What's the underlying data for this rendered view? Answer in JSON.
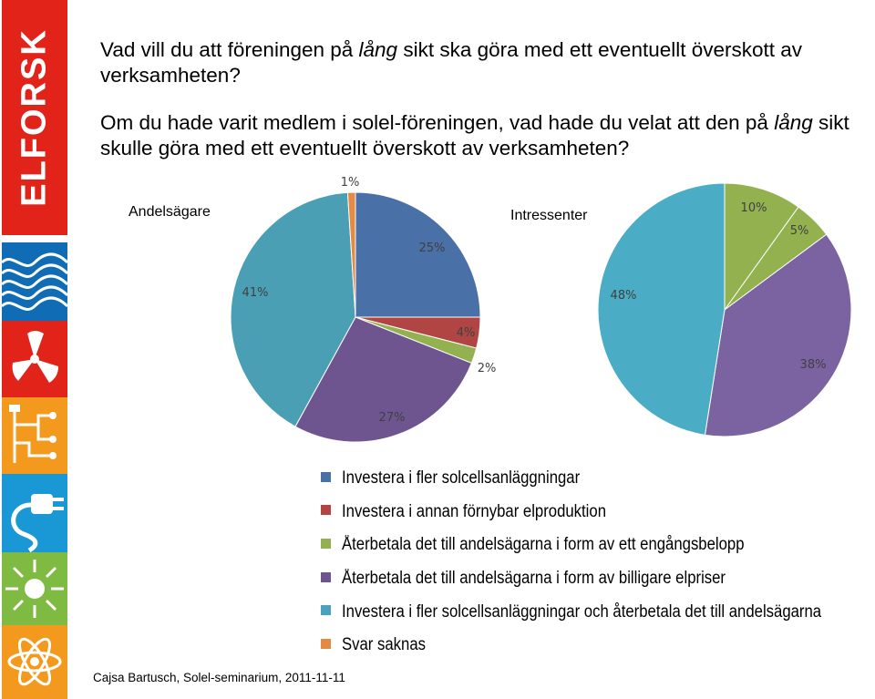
{
  "brand": {
    "logo_text": "ELFORSK"
  },
  "title": {
    "line1_part1": "Vad vill du att föreningen på ",
    "line1_italic": "lång",
    "line1_part2": " sikt ska göra med ett eventuellt överskott av verksamheten?",
    "line2_part1": "Om du hade varit medlem i solel-föreningen, vad hade du velat att den på ",
    "line2_italic": "lång",
    "line2_part2": " sikt skulle göra med ett eventuellt överskott av verksamheten?"
  },
  "colors": {
    "blue": "#4a70a8",
    "red": "#b14543",
    "green": "#93b14f",
    "purple": "#6f5590",
    "teal": "#4aa2bf",
    "orange": "#e48a42"
  },
  "chart_data": [
    {
      "type": "pie",
      "title": "Andelsägare",
      "slices": [
        {
          "label": "Investera i fler solcellsanläggningar",
          "value": 25,
          "display": "25%",
          "color": "#4a70a8"
        },
        {
          "label": "Investera i annan förnybar elproduktion",
          "value": 4,
          "display": "4%",
          "color": "#b14543"
        },
        {
          "label": "Återbetala det till andelsägarna i form av ett engångsbelopp",
          "value": 2,
          "display": "2%",
          "color": "#93b14f"
        },
        {
          "label": "Återbetala det till andelsägarna i form av billigare elpriser",
          "value": 27,
          "display": "27%",
          "color": "#6f5590"
        },
        {
          "label": "Investera i fler solcellsanläggningar och återbetala det till andelsägarna",
          "value": 41,
          "display": "41%",
          "color": "#4a9fb5"
        },
        {
          "label": "Svar saknas",
          "value": 1,
          "display": "1%",
          "color": "#e48a42"
        }
      ]
    },
    {
      "type": "pie",
      "title": "Intressenter",
      "slices": [
        {
          "label": "Återbetala det till andelsägarna i form av ett engångsbelopp",
          "value": 10,
          "display": "10%",
          "color": "#93b14f"
        },
        {
          "label": "Återbetala det till andelsägarna i form av billigare elpriser",
          "value": 5,
          "display": "5%",
          "color": "#93b14f"
        },
        {
          "label": "Återbetala det till andelsägarna i form av billigare elpriser",
          "value": 38,
          "display": "38%",
          "color": "#7b62a0"
        },
        {
          "label": "Investera i fler solcellsanläggningar och återbetala det till andelsägarna",
          "value": 48,
          "display": "48%",
          "color": "#4bacc6"
        }
      ]
    }
  ],
  "legend": [
    {
      "label": "Investera i fler solcellsanläggningar",
      "color": "#4a70a8"
    },
    {
      "label": "Investera i annan förnybar elproduktion",
      "color": "#b14543"
    },
    {
      "label": "Återbetala det till andelsägarna i form av ett engångsbelopp",
      "color": "#93b14f"
    },
    {
      "label": "Återbetala det till andelsägarna i form av billigare elpriser",
      "color": "#6f5590"
    },
    {
      "label": "Investera i fler solcellsanläggningar och återbetala det till andelsägarna",
      "color": "#4aa2bf"
    },
    {
      "label": "Svar saknas",
      "color": "#e48a42"
    }
  ],
  "footer": "Cajsa Bartusch, Solel-seminarium,  2011-11-11"
}
